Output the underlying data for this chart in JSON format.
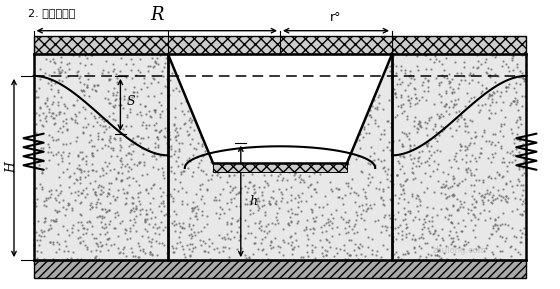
{
  "title": "2. 基坑简图：",
  "bg_color": "#ffffff",
  "line_color": "#000000",
  "soil_color": "#e8e8e8",
  "label_R": "R",
  "label_r": "r°",
  "label_H": "H",
  "label_S": "S",
  "label_h": "h",
  "watermark": "zhulong.com",
  "figw": 5.6,
  "figh": 2.89,
  "dpi": 100
}
